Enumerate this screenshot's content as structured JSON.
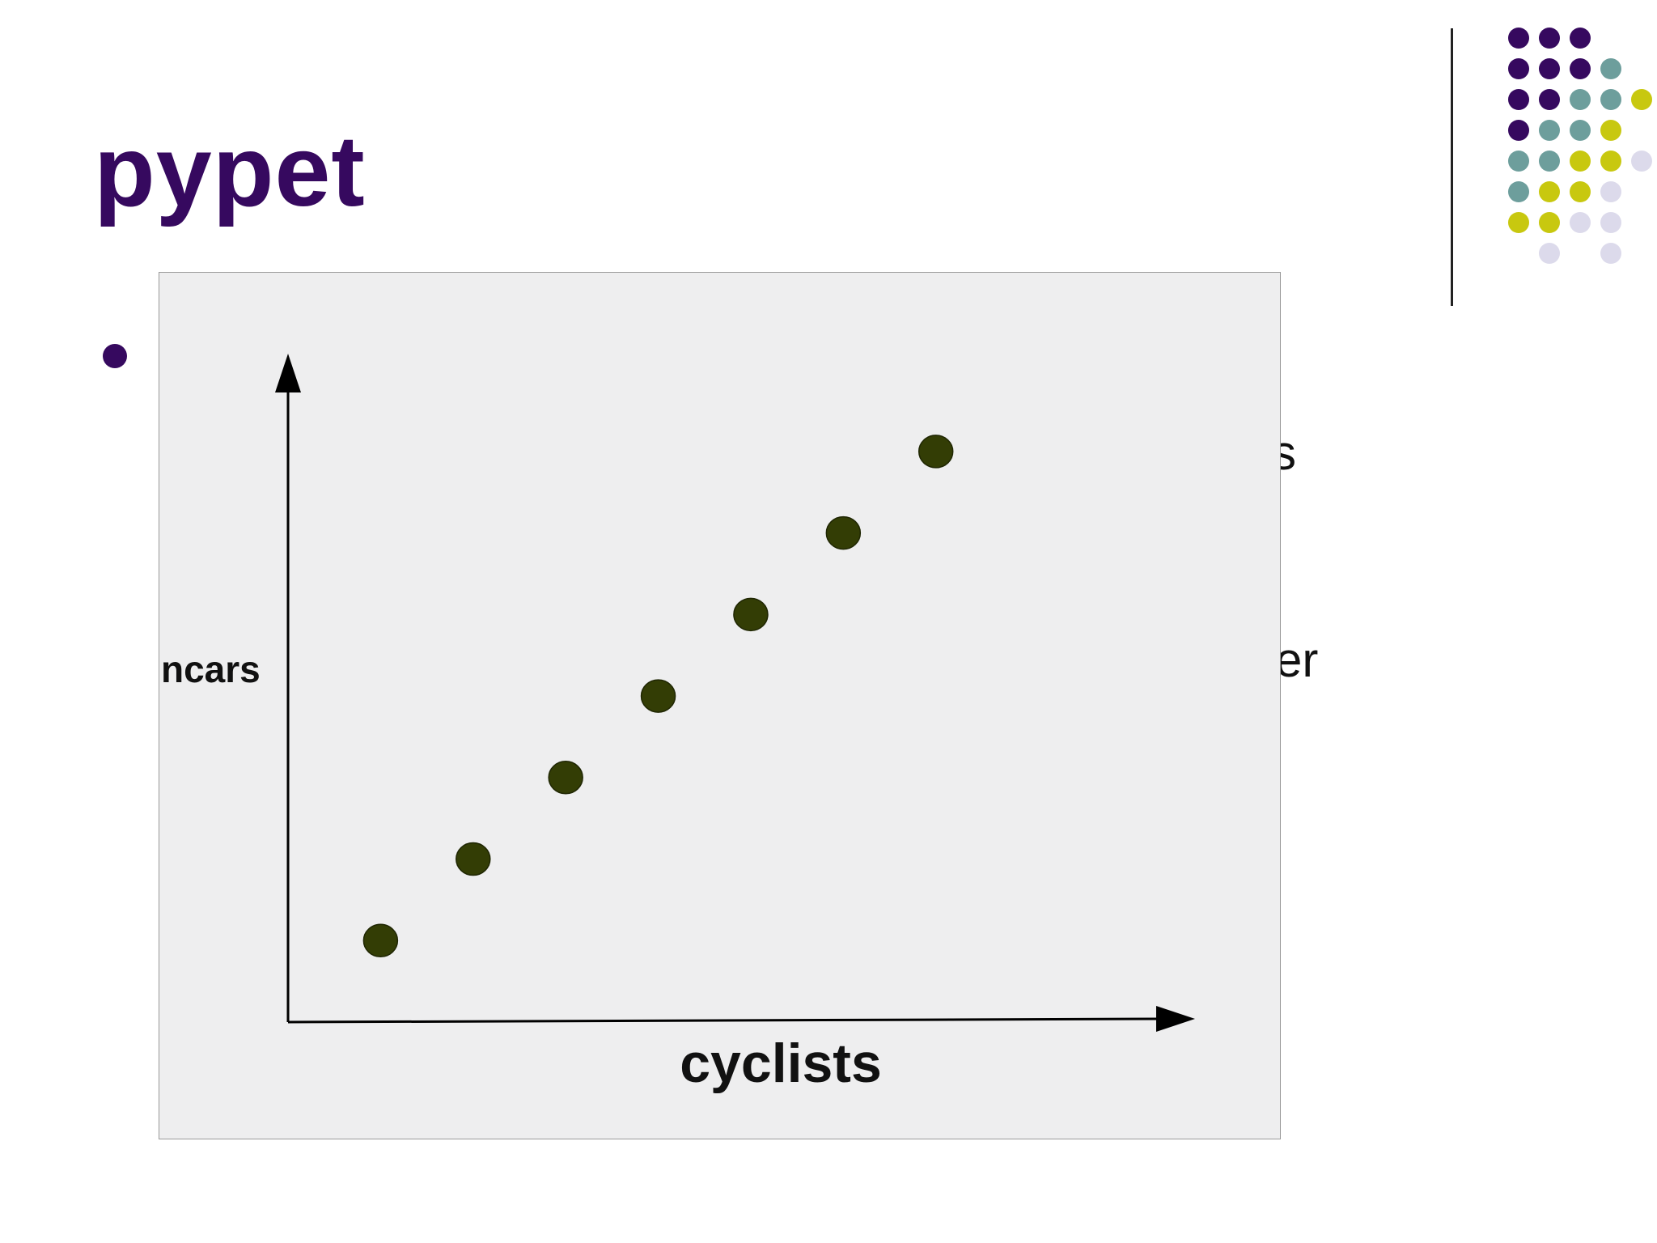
{
  "slide": {
    "title": "pypet",
    "peek_text_1": "s",
    "peek_text_2": "er"
  },
  "colors": {
    "title": "#36095f",
    "bullet": "#36095f",
    "marker": "#333d05",
    "decor_purple": "#36095f",
    "decor_teal": "#6d9e9c",
    "decor_yellow": "#c8c80f",
    "decor_lavender": "#dcdaeb"
  },
  "decor_dots": [
    [
      "purple",
      "purple",
      "purple",
      "",
      "",
      ""
    ],
    [
      "purple",
      "purple",
      "purple",
      "teal",
      "",
      ""
    ],
    [
      "purple",
      "purple",
      "teal",
      "teal",
      "yellow",
      ""
    ],
    [
      "purple",
      "teal",
      "teal",
      "yellow",
      "",
      ""
    ],
    [
      "teal",
      "teal",
      "yellow",
      "yellow",
      "lavender",
      ""
    ],
    [
      "teal",
      "yellow",
      "yellow",
      "lavender",
      "",
      ""
    ],
    [
      "yellow",
      "yellow",
      "lavender",
      "lavender",
      "",
      ""
    ],
    [
      "",
      "lavender",
      "",
      "lavender",
      "",
      ""
    ]
  ],
  "chart_data": {
    "type": "scatter",
    "xlabel": "cyclists",
    "ylabel": "ncars",
    "title": "",
    "tick_labels": "none",
    "x": [
      1,
      2,
      3,
      4,
      5,
      6,
      7
    ],
    "y": [
      1,
      2,
      3,
      4,
      5,
      6,
      7
    ],
    "xlim": [
      0,
      9.8
    ],
    "ylim": [
      0,
      8.2
    ],
    "legend": "none",
    "grid": false
  }
}
